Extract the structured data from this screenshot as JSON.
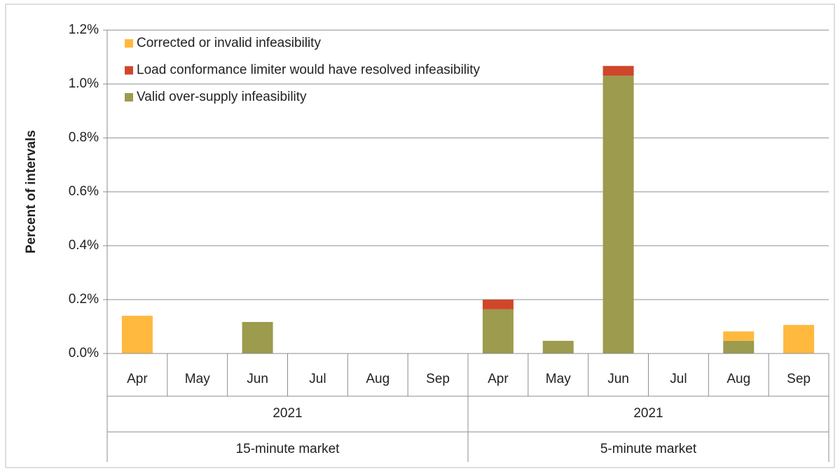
{
  "chart_data": {
    "type": "stacked_bar",
    "y_label": "Percent of intervals",
    "categories": [
      "Apr",
      "May",
      "Jun",
      "Jul",
      "Aug",
      "Sep",
      "Apr",
      "May",
      "Jun",
      "Jul",
      "Aug",
      "Sep"
    ],
    "groups": [
      {
        "year": "2021",
        "market": "15-minute market"
      },
      {
        "year": "2021",
        "market": "5-minute market"
      }
    ],
    "series": [
      {
        "name": "Corrected or invalid infeasibility",
        "color": "#ffb93f",
        "values": [
          0.14,
          0,
          0,
          0,
          0,
          0,
          0,
          0,
          0,
          0,
          0.035,
          0.106
        ]
      },
      {
        "name": "Load conformance limiter would have resolved infeasibility",
        "color": "#d0462a",
        "values": [
          0,
          0,
          0,
          0,
          0,
          0,
          0.036,
          0,
          0.036,
          0,
          0,
          0
        ]
      },
      {
        "name": "Valid over-supply infeasibility",
        "color": "#9c9b4e",
        "values": [
          0,
          0,
          0.117,
          0,
          0,
          0,
          0.164,
          0.047,
          1.031,
          0,
          0.047,
          0
        ]
      }
    ],
    "ylim": [
      0,
      1.2
    ],
    "yticks": [
      {
        "value": 0,
        "label": "0.0%"
      },
      {
        "value": 0.2,
        "label": "0.2%"
      },
      {
        "value": 0.4,
        "label": "0.4%"
      },
      {
        "value": 0.6,
        "label": "0.6%"
      },
      {
        "value": 0.8,
        "label": "0.8%"
      },
      {
        "value": 1.0,
        "label": "1.0%"
      },
      {
        "value": 1.2,
        "label": "1.2%"
      }
    ],
    "grid": true,
    "legend": "top-left"
  }
}
